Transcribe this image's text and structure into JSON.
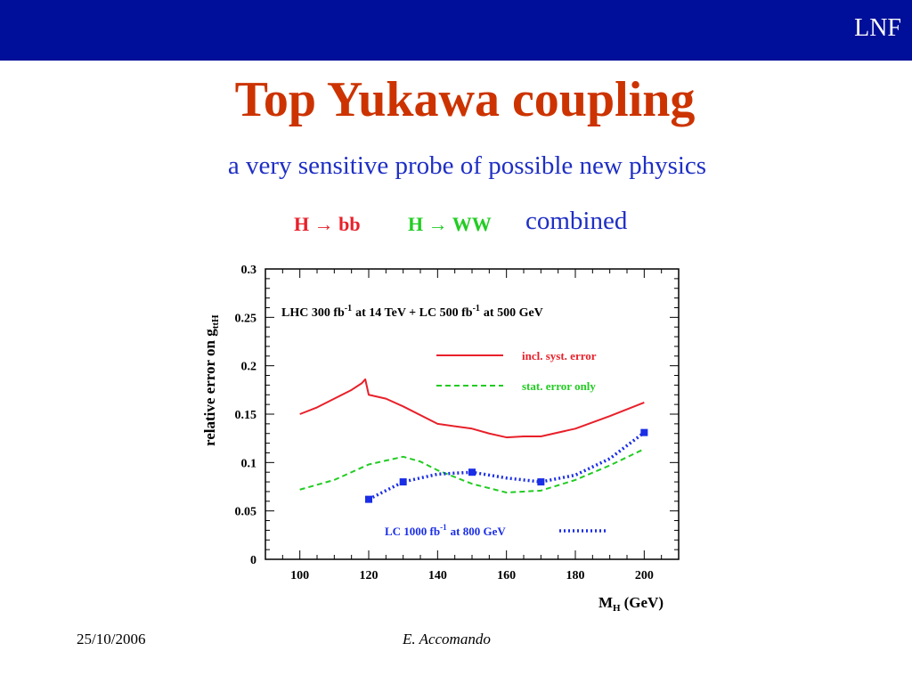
{
  "header": {
    "logo_text": "LNF",
    "bar_color": "#000f99"
  },
  "slide": {
    "title": "Top Yukawa coupling",
    "subtitle": "a very sensitive probe of possible new physics",
    "channels": {
      "hbb": "H → bb",
      "hww": "H → WW",
      "combined": "combined"
    }
  },
  "footer": {
    "date": "25/10/2006",
    "author": "E. Accomando"
  },
  "colors": {
    "title": "#cc3300",
    "subtitle": "#1f2fc4",
    "hbb": "#e8202a",
    "hww": "#22cc22"
  },
  "chart_data": {
    "type": "line",
    "xlabel": "M",
    "xlabel_sub": "H",
    "xlabel_suffix": "(GeV)",
    "ylabel": "relative error on g",
    "ylabel_sub": "ttH",
    "xlim": [
      90,
      210
    ],
    "ylim": [
      0,
      0.3
    ],
    "xticks": [
      "100",
      "120",
      "140",
      "160",
      "180",
      "200"
    ],
    "yticks": [
      "0",
      "0.05",
      "0.1",
      "0.15",
      "0.2",
      "0.25",
      "0.3"
    ],
    "annotation": {
      "part1": "LHC 300 fb",
      "sup1": "-1",
      "part2": "at 14 TeV + LC 500 fb",
      "sup2": "-1",
      "part3": "at 500 GeV"
    },
    "legend": {
      "incl": "incl.  syst. error",
      "stat": "stat. error only",
      "lc_part1": "LC 1000 fb",
      "lc_sup": "-1",
      "lc_part2": "at 800 GeV"
    },
    "series": [
      {
        "name": "incl.  syst. error",
        "color": "#e8202a",
        "style": "solid",
        "x": [
          100,
          105,
          110,
          115,
          118,
          119,
          120,
          125,
          130,
          140,
          150,
          155,
          160,
          165,
          170,
          180,
          190,
          200
        ],
        "y": [
          0.15,
          0.157,
          0.166,
          0.175,
          0.182,
          0.186,
          0.17,
          0.166,
          0.158,
          0.14,
          0.135,
          0.13,
          0.126,
          0.127,
          0.127,
          0.135,
          0.148,
          0.162
        ]
      },
      {
        "name": "stat. error only",
        "color": "#22cc22",
        "style": "dashed",
        "x": [
          100,
          110,
          120,
          125,
          130,
          135,
          140,
          150,
          160,
          170,
          180,
          190,
          200
        ],
        "y": [
          0.072,
          0.082,
          0.098,
          0.102,
          0.106,
          0.101,
          0.092,
          0.078,
          0.069,
          0.071,
          0.082,
          0.097,
          0.114
        ]
      },
      {
        "name": "LC 1000 fb-1 at 800 GeV",
        "color": "#1a2ee6",
        "style": "dotted",
        "x": [
          120,
          130,
          140,
          150,
          160,
          170,
          180,
          190,
          200
        ],
        "y": [
          0.062,
          0.08,
          0.088,
          0.09,
          0.084,
          0.08,
          0.087,
          0.104,
          0.131
        ],
        "markers_x": [
          120,
          130,
          150,
          170,
          200
        ],
        "markers_y": [
          0.062,
          0.08,
          0.09,
          0.08,
          0.131
        ]
      }
    ]
  }
}
